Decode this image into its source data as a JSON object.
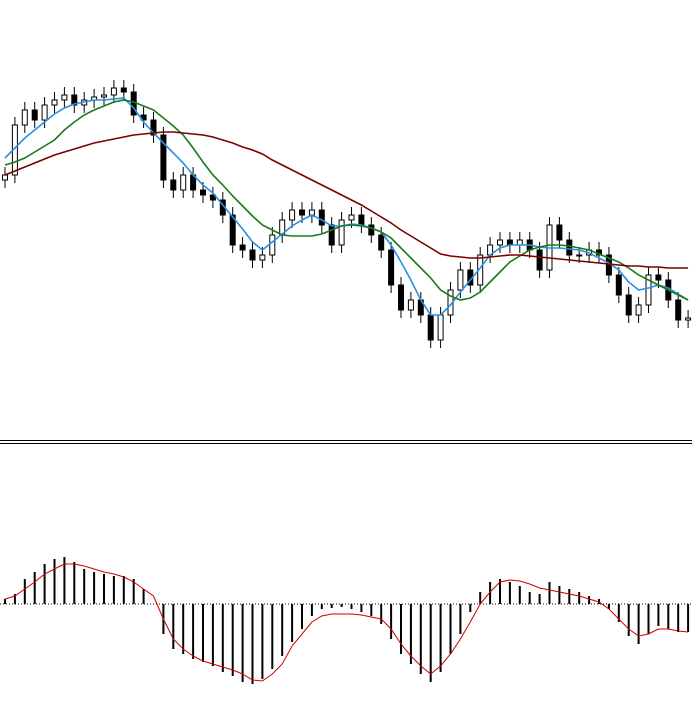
{
  "chart_data": [
    {
      "type": "candlestick",
      "ylim": [
        0,
        440
      ],
      "up_color": "#ffffff",
      "down_color": "#000000",
      "edge_color": "#000000",
      "open": [
        260,
        265,
        315,
        330,
        320,
        335,
        340,
        345,
        335,
        340,
        343,
        345,
        352,
        348,
        325,
        320,
        305,
        260,
        250,
        265,
        250,
        245,
        240,
        225,
        195,
        190,
        180,
        185,
        205,
        220,
        230,
        225,
        230,
        215,
        195,
        220,
        225,
        215,
        205,
        190,
        155,
        130,
        140,
        125,
        100,
        125,
        150,
        170,
        155,
        185,
        195,
        200,
        195,
        200,
        190,
        170,
        215,
        200,
        185,
        185,
        190,
        185,
        165,
        145,
        125,
        135,
        165,
        160,
        140,
        120
      ],
      "high": [
        273,
        323,
        338,
        338,
        343,
        348,
        353,
        353,
        348,
        351,
        353,
        360,
        360,
        356,
        333,
        328,
        313,
        268,
        273,
        273,
        258,
        253,
        248,
        233,
        203,
        198,
        193,
        213,
        228,
        238,
        238,
        238,
        238,
        223,
        228,
        233,
        233,
        223,
        213,
        198,
        163,
        148,
        148,
        133,
        133,
        158,
        178,
        178,
        193,
        203,
        208,
        208,
        208,
        208,
        198,
        223,
        223,
        208,
        193,
        198,
        198,
        193,
        173,
        153,
        143,
        173,
        173,
        168,
        148,
        130
      ],
      "low": [
        252,
        257,
        307,
        312,
        312,
        327,
        332,
        327,
        327,
        332,
        335,
        337,
        340,
        317,
        312,
        297,
        252,
        242,
        242,
        242,
        237,
        232,
        217,
        187,
        182,
        172,
        172,
        177,
        197,
        212,
        217,
        217,
        207,
        187,
        187,
        212,
        207,
        197,
        182,
        147,
        122,
        122,
        117,
        92,
        92,
        117,
        142,
        147,
        147,
        177,
        187,
        187,
        187,
        182,
        162,
        162,
        192,
        177,
        177,
        177,
        177,
        157,
        137,
        117,
        117,
        127,
        152,
        132,
        112,
        112
      ],
      "close": [
        265,
        315,
        330,
        320,
        335,
        340,
        345,
        335,
        340,
        343,
        345,
        352,
        348,
        325,
        320,
        305,
        260,
        250,
        265,
        250,
        245,
        240,
        225,
        195,
        190,
        180,
        185,
        205,
        220,
        230,
        225,
        230,
        215,
        195,
        220,
        225,
        215,
        205,
        190,
        155,
        130,
        140,
        125,
        100,
        125,
        150,
        170,
        155,
        185,
        195,
        200,
        195,
        200,
        190,
        170,
        215,
        200,
        185,
        185,
        190,
        185,
        165,
        145,
        125,
        135,
        165,
        160,
        140,
        120,
        122
      ],
      "series": [
        {
          "color": "#2b8fe0",
          "values": [
            282,
            292,
            302,
            310,
            318,
            326,
            332,
            336,
            338,
            340,
            340,
            341,
            342,
            332,
            318,
            307,
            297,
            287,
            277,
            265,
            255,
            247,
            235,
            223,
            211,
            198,
            190,
            198,
            206,
            214,
            220,
            225,
            220,
            214,
            214,
            216,
            215,
            212,
            208,
            195,
            178,
            160,
            140,
            125,
            125,
            135,
            148,
            160,
            172,
            185,
            192,
            195,
            195,
            195,
            193,
            192,
            192,
            191,
            190,
            187,
            182,
            177,
            170,
            158,
            150,
            152,
            155,
            152,
            146,
            140
          ]
        },
        {
          "color": "#1a7a1a",
          "values": [
            275,
            278,
            282,
            288,
            294,
            300,
            310,
            318,
            325,
            330,
            334,
            338,
            340,
            338,
            334,
            330,
            322,
            314,
            305,
            292,
            278,
            265,
            255,
            244,
            234,
            224,
            215,
            210,
            205,
            204,
            204,
            204,
            206,
            210,
            214,
            215,
            214,
            212,
            208,
            202,
            192,
            182,
            172,
            162,
            150,
            144,
            140,
            142,
            148,
            158,
            168,
            178,
            184,
            190,
            193,
            195,
            195,
            194,
            192,
            190,
            186,
            182,
            178,
            172,
            165,
            160,
            155,
            150,
            145,
            140
          ]
        },
        {
          "color": "#7a0000",
          "values": [
            265,
            269,
            273,
            277,
            281,
            285,
            288,
            291,
            294,
            297,
            299,
            301,
            303,
            305,
            306,
            307,
            308,
            308,
            307,
            306,
            305,
            303,
            300,
            297,
            293,
            290,
            286,
            280,
            275,
            270,
            265,
            260,
            255,
            250,
            245,
            240,
            235,
            229,
            223,
            217,
            210,
            204,
            198,
            192,
            186,
            184,
            183,
            182,
            182,
            183,
            184,
            185,
            185,
            184,
            183,
            182,
            181,
            180,
            179,
            178,
            177,
            176,
            175,
            174,
            174,
            173,
            173,
            172,
            172,
            172
          ]
        }
      ]
    },
    {
      "type": "macd",
      "ylim": [
        -106,
        159
      ],
      "color": "#000000",
      "values": [
        5,
        10,
        25,
        32,
        40,
        45,
        47,
        42,
        35,
        32,
        30,
        28,
        28,
        25,
        15,
        0,
        -30,
        -45,
        -50,
        -55,
        -58,
        -62,
        -68,
        -72,
        -78,
        -80,
        -75,
        -65,
        -52,
        -38,
        -25,
        -12,
        -5,
        -4,
        -3,
        -5,
        -8,
        -12,
        -20,
        -35,
        -50,
        -60,
        -70,
        -78,
        -68,
        -50,
        -30,
        -8,
        12,
        22,
        25,
        22,
        18,
        12,
        10,
        22,
        18,
        15,
        12,
        8,
        5,
        -5,
        -18,
        -32,
        -40,
        -30,
        -22,
        -25,
        -28,
        -28
      ],
      "series": [
        {
          "color": "#cc0000",
          "values": [
            5,
            8,
            15,
            22,
            30,
            35,
            40,
            40,
            38,
            35,
            32,
            30,
            27,
            22,
            15,
            8,
            -15,
            -35,
            -45,
            -52,
            -57,
            -60,
            -63,
            -66,
            -70,
            -76,
            -77,
            -70,
            -60,
            -42,
            -30,
            -18,
            -12,
            -10,
            -10,
            -10,
            -11,
            -13,
            -15,
            -25,
            -40,
            -52,
            -62,
            -70,
            -62,
            -50,
            -35,
            -18,
            0,
            12,
            22,
            24,
            23,
            20,
            16,
            14,
            12,
            10,
            8,
            5,
            2,
            -5,
            -15,
            -25,
            -32,
            -30,
            -25,
            -25,
            -27,
            -28
          ]
        }
      ]
    }
  ]
}
